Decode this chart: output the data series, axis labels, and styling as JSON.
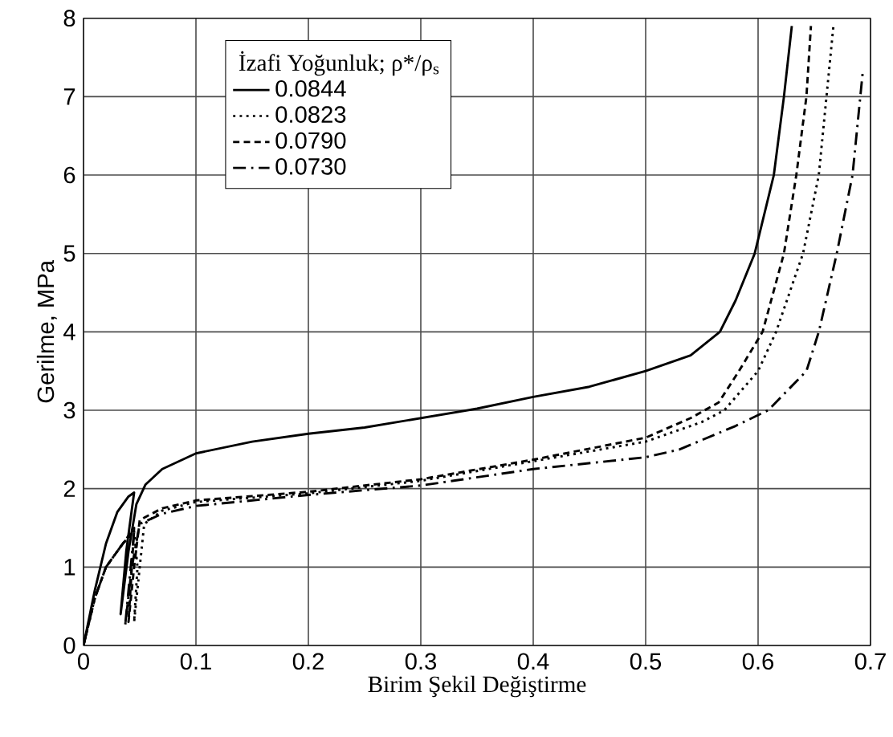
{
  "chart_data": {
    "type": "line",
    "xlabel": "Birim Şekil Değiştirme",
    "ylabel": "Gerilme, MPa",
    "legend_title": "İzafi Yoğunluk; ρ*/ρ$_{s}$",
    "legend": "top left",
    "grid": true,
    "xlim": [
      0,
      0.7
    ],
    "ylim": [
      0,
      8
    ],
    "xticks": [
      0,
      0.1,
      0.2,
      0.3,
      0.4,
      0.5,
      0.6,
      0.7
    ],
    "yticks": [
      0,
      1,
      2,
      3,
      4,
      5,
      6,
      7,
      8
    ],
    "series": [
      {
        "name": "0.0844",
        "color": "#000000",
        "line_style": "solid",
        "x": [
          0,
          0.01,
          0.02,
          0.03,
          0.04,
          0.045,
          0.038,
          0.033,
          0.04,
          0.047,
          0.055,
          0.07,
          0.1,
          0.15,
          0.2,
          0.25,
          0.3,
          0.35,
          0.4,
          0.45,
          0.5,
          0.54,
          0.566,
          0.58,
          0.597,
          0.614,
          0.623,
          0.63
        ],
        "values": [
          0,
          0.7,
          1.3,
          1.7,
          1.9,
          1.95,
          1.2,
          0.4,
          1.2,
          1.8,
          2.05,
          2.25,
          2.45,
          2.6,
          2.7,
          2.78,
          2.9,
          3.02,
          3.17,
          3.3,
          3.5,
          3.7,
          4.0,
          4.4,
          5.0,
          6.0,
          7.0,
          7.9
        ]
      },
      {
        "name": "0.0823",
        "color": "#000000",
        "line_style": "dotted",
        "x": [
          0,
          0.01,
          0.02,
          0.035,
          0.045,
          0.048,
          0.045,
          0.05,
          0.054,
          0.07,
          0.1,
          0.2,
          0.3,
          0.4,
          0.5,
          0.55,
          0.57,
          0.6,
          0.616,
          0.64,
          0.654,
          0.667
        ],
        "values": [
          0,
          0.6,
          1.0,
          1.3,
          1.45,
          1.0,
          0.3,
          1.0,
          1.55,
          1.72,
          1.83,
          1.94,
          2.1,
          2.35,
          2.6,
          2.85,
          3.0,
          3.5,
          4.0,
          5.0,
          6.0,
          7.9
        ]
      },
      {
        "name": "0.0790",
        "color": "#000000",
        "line_style": "dashed",
        "x": [
          0,
          0.01,
          0.02,
          0.035,
          0.045,
          0.043,
          0.04,
          0.045,
          0.05,
          0.07,
          0.1,
          0.2,
          0.3,
          0.4,
          0.5,
          0.54,
          0.565,
          0.583,
          0.604,
          0.623,
          0.634,
          0.643,
          0.647
        ],
        "values": [
          0,
          0.6,
          1.0,
          1.3,
          1.5,
          1.0,
          0.3,
          1.0,
          1.6,
          1.75,
          1.85,
          1.96,
          2.12,
          2.37,
          2.65,
          2.9,
          3.1,
          3.5,
          4.0,
          5.0,
          6.0,
          7.0,
          7.9
        ]
      },
      {
        "name": "0.0730",
        "color": "#000000",
        "line_style": "dashdot",
        "x": [
          0,
          0.01,
          0.02,
          0.035,
          0.045,
          0.042,
          0.037,
          0.043,
          0.05,
          0.07,
          0.1,
          0.2,
          0.3,
          0.4,
          0.5,
          0.53,
          0.58,
          0.609,
          0.643,
          0.654,
          0.67,
          0.684,
          0.693
        ],
        "values": [
          0,
          0.6,
          1.0,
          1.3,
          1.45,
          1.0,
          0.25,
          1.0,
          1.55,
          1.68,
          1.78,
          1.92,
          2.04,
          2.25,
          2.4,
          2.5,
          2.8,
          3.0,
          3.5,
          4.0,
          5.0,
          6.0,
          7.3
        ]
      }
    ]
  }
}
